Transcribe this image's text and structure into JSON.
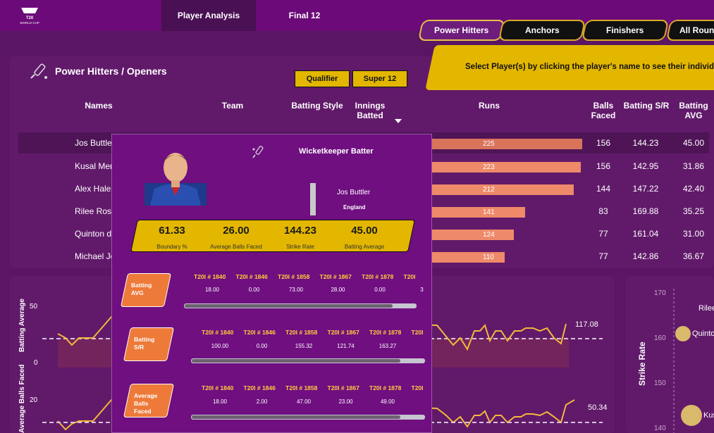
{
  "nav": {
    "logo_alt": "T20 World Cup",
    "tabs": [
      "Player Analysis",
      "Final 12"
    ],
    "active_tab": "Player Analysis"
  },
  "filters": {
    "categories": [
      "Power Hitters",
      "Anchors",
      "Finishers",
      "All Rounders"
    ],
    "active": "Power Hitters",
    "stage_buttons": [
      "Qualifier",
      "Super 12"
    ]
  },
  "banner": {
    "text": "Select Player(s) by clicking the player's name to see their individual stats"
  },
  "section": {
    "title": "Power Hitters / Openers"
  },
  "table": {
    "headers": {
      "names": "Names",
      "team": "Team",
      "batting_style": "Batting Style",
      "innings": "Innings Batted",
      "runs": "Runs",
      "balls": "Balls Faced",
      "sr": "Batting S/R",
      "avg": "Batting AVG"
    },
    "rows": [
      {
        "name": "Jos Buttler",
        "runs": 225,
        "balls": "156",
        "sr": "144.23",
        "avg": "45.00"
      },
      {
        "name": "Kusal Mendis",
        "runs": 223,
        "balls": "156",
        "sr": "142.95",
        "avg": "31.86"
      },
      {
        "name": "Alex Hales",
        "runs": 212,
        "balls": "144",
        "sr": "147.22",
        "avg": "42.40"
      },
      {
        "name": "Rilee Rossouw",
        "runs": 141,
        "balls": "83",
        "sr": "169.88",
        "avg": "35.25"
      },
      {
        "name": "Quinton de Kock",
        "runs": 124,
        "balls": "77",
        "sr": "161.04",
        "avg": "31.00"
      },
      {
        "name": "Michael Jones",
        "runs": 110,
        "balls": "77",
        "sr": "142.86",
        "avg": "36.67"
      }
    ]
  },
  "tooltip": {
    "role": "Wicketkeeper Batter",
    "player_name": "Jos Buttler",
    "team": "England",
    "stats": [
      {
        "value": "61.33",
        "label": "Boundary %"
      },
      {
        "value": "26.00",
        "label": "Average Balls Faced"
      },
      {
        "value": "144.23",
        "label": "Strike Rate"
      },
      {
        "value": "45.00",
        "label": "Batting Average"
      }
    ],
    "matches": [
      "T20I # 1840",
      "T20I # 1846",
      "T20I # 1858",
      "T20I # 1867",
      "T20I # 1878",
      "T20I"
    ],
    "metrics": [
      {
        "label": "Batting AVG",
        "values": [
          "18.00",
          "0.00",
          "73.00",
          "28.00",
          "0.00",
          "3"
        ]
      },
      {
        "label": "Batting S/R",
        "values": [
          "100.00",
          "0.00",
          "155.32",
          "121.74",
          "163.27",
          ""
        ]
      },
      {
        "label": "Average Balls Faced",
        "values": [
          "18.00",
          "2.00",
          "47.00",
          "23.00",
          "49.00",
          ""
        ]
      }
    ]
  },
  "charts": {
    "avg_chart": {
      "ylabel": "Batting Average",
      "ticks": [
        "50",
        "0"
      ],
      "end_label": "117.08"
    },
    "balls_chart": {
      "ylabel": "Average Balls Faced",
      "ticks": [
        "20"
      ],
      "end_label": "50.34"
    },
    "scatter": {
      "ylabel": "Strike Rate",
      "ticks": [
        "170",
        "160",
        "150",
        "140"
      ],
      "labels": [
        "Rilee",
        "Quinto",
        "Kusa"
      ]
    }
  }
}
